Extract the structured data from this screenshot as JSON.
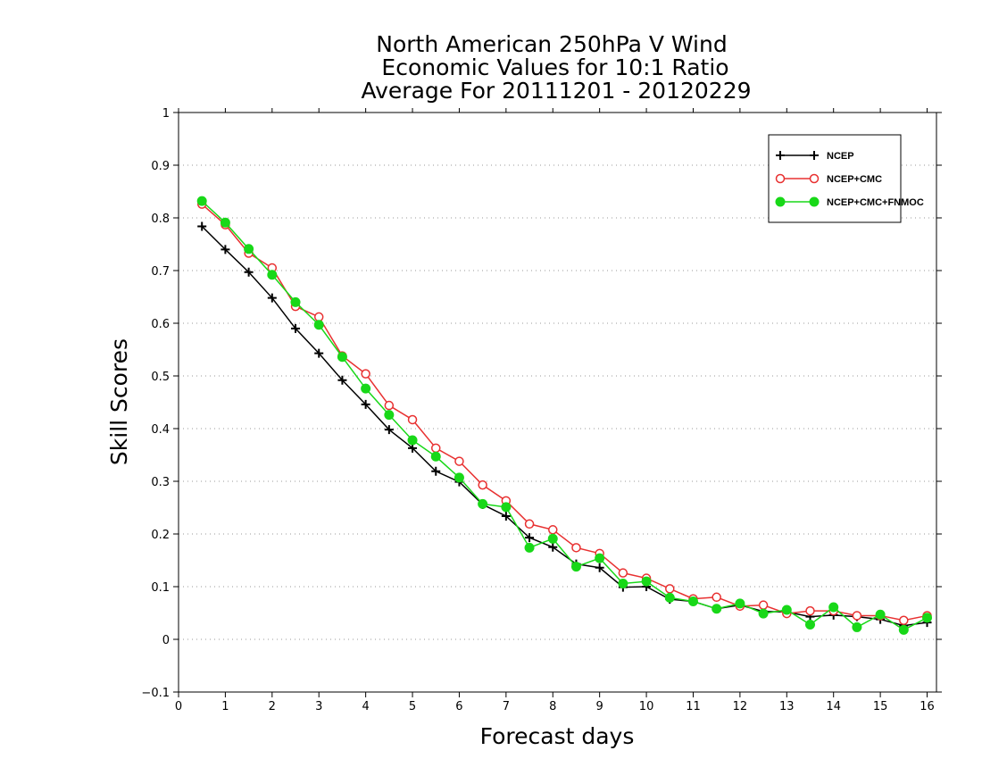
{
  "chart_data": {
    "type": "line",
    "title_lines": [
      "North American 250hPa V Wind",
      "Economic Values for 10:1 Ratio",
      "Average For 20111201 - 20120229"
    ],
    "xlabel": "Forecast days",
    "ylabel": "Skill Scores",
    "xlim": [
      0,
      16.2
    ],
    "ylim": [
      -0.1,
      1
    ],
    "x_ticks": [
      "0",
      "1",
      "2",
      "3",
      "4",
      "5",
      "6",
      "7",
      "8",
      "9",
      "10",
      "11",
      "12",
      "13",
      "14",
      "15",
      "16"
    ],
    "y_ticks": [
      "−0.1",
      "0",
      "0.1",
      "0.2",
      "0.3",
      "0.4",
      "0.5",
      "0.6",
      "0.7",
      "0.8",
      "0.9",
      "1"
    ],
    "grid": "horizontal dotted",
    "legend_position": "top-right",
    "x": [
      0.5,
      1,
      1.5,
      2,
      2.5,
      3,
      3.5,
      4,
      4.5,
      5,
      5.5,
      6,
      6.5,
      7,
      7.5,
      8,
      8.5,
      9,
      9.5,
      10,
      10.5,
      11,
      11.5,
      12,
      12.5,
      13,
      13.5,
      14,
      14.5,
      15,
      15.5,
      16
    ],
    "series": [
      {
        "name": "NCEP",
        "color": "#000000",
        "marker": "plus",
        "values": [
          0.784,
          0.74,
          0.697,
          0.648,
          0.59,
          0.543,
          0.492,
          0.446,
          0.398,
          0.363,
          0.319,
          0.299,
          0.256,
          0.234,
          0.193,
          0.175,
          0.143,
          0.136,
          0.099,
          0.1,
          0.076,
          0.072,
          0.058,
          0.065,
          0.053,
          0.052,
          0.043,
          0.046,
          0.043,
          0.038,
          0.026,
          0.032
        ]
      },
      {
        "name": "NCEP+CMC",
        "color": "#e83030",
        "marker": "open-circle",
        "values": [
          0.826,
          0.787,
          0.733,
          0.705,
          0.632,
          0.612,
          0.538,
          0.504,
          0.444,
          0.417,
          0.363,
          0.338,
          0.293,
          0.263,
          0.219,
          0.208,
          0.174,
          0.163,
          0.126,
          0.116,
          0.096,
          0.077,
          0.08,
          0.063,
          0.065,
          0.049,
          0.054,
          0.054,
          0.045,
          0.045,
          0.036,
          0.045
        ]
      },
      {
        "name": "NCEP+CMC+FNMOC",
        "color": "#18d818",
        "marker": "filled-circle",
        "values": [
          0.832,
          0.791,
          0.741,
          0.692,
          0.64,
          0.597,
          0.536,
          0.476,
          0.426,
          0.378,
          0.347,
          0.307,
          0.257,
          0.251,
          0.174,
          0.191,
          0.138,
          0.154,
          0.106,
          0.11,
          0.079,
          0.072,
          0.058,
          0.068,
          0.049,
          0.056,
          0.028,
          0.061,
          0.023,
          0.047,
          0.018,
          0.041
        ]
      }
    ]
  }
}
